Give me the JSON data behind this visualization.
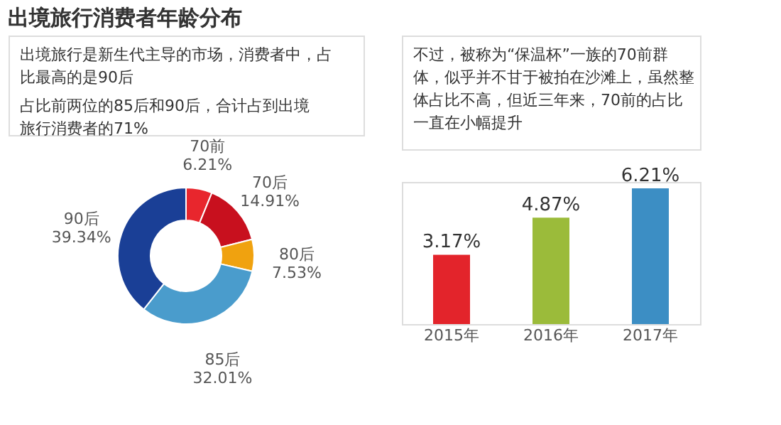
{
  "chart_data": [
    {
      "type": "donut",
      "title": "出境旅行消费者年龄分布",
      "annotations": [
        "出境旅行是新生代主导的市场，消费者中，占比最高的是90后",
        "占比前两位的85后和90后，合计占到出境旅行消费者的71%"
      ],
      "categories": [
        "70前",
        "70后",
        "80后",
        "85后",
        "90后"
      ],
      "values": [
        6.21,
        14.91,
        7.53,
        32.01,
        39.34
      ],
      "colors": [
        "#e8262d",
        "#c8101e",
        "#f0a20f",
        "#4a9ccc",
        "#1a3f96"
      ],
      "value_labels": [
        "6.21%",
        "14.91%",
        "7.53%",
        "32.01%",
        "39.34%"
      ]
    },
    {
      "type": "bar",
      "annotations": [
        "不过，被称为“保温杯”一族的70前群体，似乎并不甘于被拍在沙滩上，虽然整体占比不高，但近三年来，70前的占比一直在小幅提升"
      ],
      "categories": [
        "2015年",
        "2016年",
        "2017年"
      ],
      "values": [
        3.17,
        4.87,
        6.21
      ],
      "colors": [
        "#e3242b",
        "#9bbb3a",
        "#3c8ec4"
      ],
      "value_labels": [
        "3.17%",
        "4.87%",
        "6.21%"
      ]
    }
  ]
}
